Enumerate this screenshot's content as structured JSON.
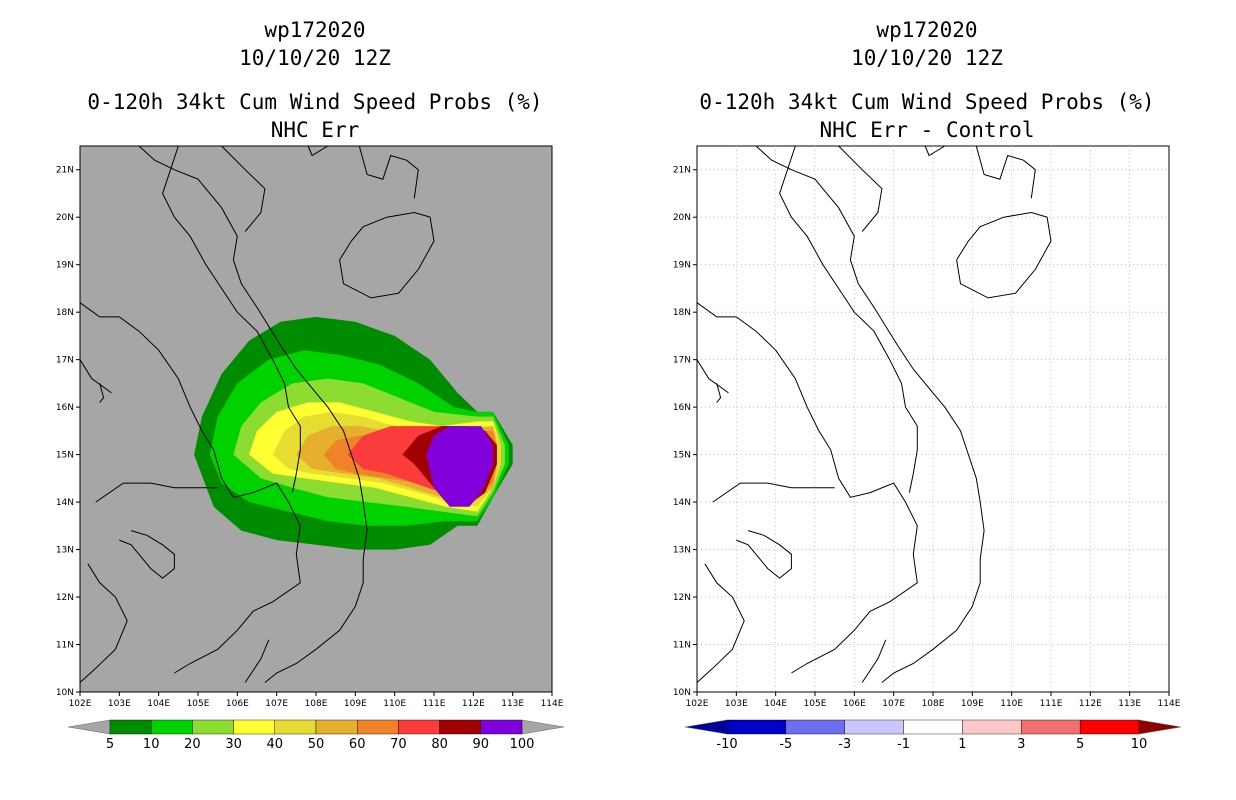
{
  "left_panel": {
    "storm_id": "wp172020",
    "datetime": "10/10/20 12Z",
    "product": "0-120h 34kt Cum Wind Speed Probs (%)",
    "subtitle": "NHC Err",
    "background_color": "#a6a6a6",
    "colorbar": {
      "colors": [
        "#008c00",
        "#00d200",
        "#8cdc32",
        "#ffff32",
        "#e6dc32",
        "#e6af2d",
        "#f08228",
        "#fa3c3c",
        "#a00000",
        "#8200dc"
      ],
      "labels": [
        "5",
        "10",
        "20",
        "30",
        "40",
        "50",
        "60",
        "70",
        "80",
        "90",
        "100"
      ]
    }
  },
  "right_panel": {
    "storm_id": "wp172020",
    "datetime": "10/10/20 12Z",
    "product": "0-120h 34kt Cum Wind Speed Probs (%)",
    "subtitle": "NHC Err - Control",
    "background_color": "#ffffff",
    "colorbar": {
      "colors": [
        "#0000c8",
        "#6e6ef0",
        "#c8c8ff",
        "#ffffff",
        "#ffc8c8",
        "#f07070",
        "#ff0000"
      ],
      "left_tip": "#00009a",
      "right_tip": "#8c0000",
      "labels": [
        "-10",
        "-5",
        "-3",
        "-1",
        "1",
        "3",
        "5",
        "10"
      ]
    }
  },
  "axes": {
    "lat_labels": [
      "21N",
      "20N",
      "19N",
      "18N",
      "17N",
      "16N",
      "15N",
      "14N",
      "13N",
      "12N",
      "11N",
      "10N"
    ],
    "lon_labels": [
      "102E",
      "103E",
      "104E",
      "105E",
      "106E",
      "107E",
      "108E",
      "109E",
      "110E",
      "111E",
      "112E",
      "113E",
      "114E"
    ]
  }
}
